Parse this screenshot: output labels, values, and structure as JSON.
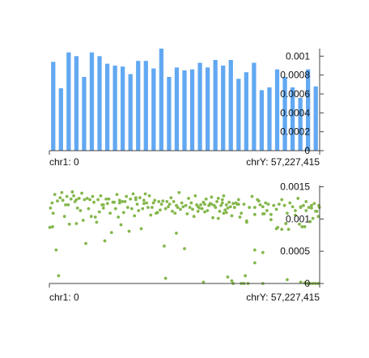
{
  "chart_data": [
    {
      "type": "bar",
      "color": "#62a8f2",
      "x_start_label": "chr1: 0",
      "x_end_label": "chrY: 57,227,415",
      "ylim": [
        0,
        0.00108
      ],
      "yticks": [
        "0",
        "0.0002",
        "0.0004",
        "0.0006",
        "0.0008",
        "0.001"
      ],
      "grid": false,
      "values": [
        0.00094,
        0.00066,
        0.00104,
        0.001,
        0.00078,
        0.00104,
        0.001,
        0.00092,
        0.0009,
        0.00089,
        0.00081,
        0.00095,
        0.00095,
        0.00087,
        0.00108,
        0.00078,
        0.00088,
        0.00085,
        0.00086,
        0.00093,
        0.00088,
        0.00096,
        0.0009,
        0.00096,
        0.00076,
        0.00083,
        0.00093,
        0.00064,
        0.00067,
        0.00086,
        0.00078,
        0.00067,
        0.00056,
        0.00086,
        0.00068
      ]
    },
    {
      "type": "scatter",
      "color": "#84b74c",
      "x_start_label": "chr1: 0",
      "x_end_label": "chrY: 57,227,415",
      "ylim": [
        0,
        0.00152
      ],
      "yticks": [
        "0",
        "0.0005",
        "0.001",
        "0.0015"
      ],
      "grid": false,
      "points": [
        [
          0.002,
          0.00087
        ],
        [
          0.004,
          0.00117
        ],
        [
          0.01,
          0.00125
        ],
        [
          0.014,
          0.00109
        ],
        [
          0.02,
          0.00138
        ],
        [
          0.025,
          0.00052
        ],
        [
          0.03,
          0.00128
        ],
        [
          0.034,
          0.00012
        ],
        [
          0.04,
          0.00133
        ],
        [
          0.046,
          0.00141
        ],
        [
          0.05,
          0.00129
        ],
        [
          0.056,
          0.00104
        ],
        [
          0.06,
          0.00122
        ],
        [
          0.065,
          0.00135
        ],
        [
          0.07,
          0.00122
        ],
        [
          0.074,
          0.00092
        ],
        [
          0.08,
          0.00131
        ],
        [
          0.085,
          0.00142
        ],
        [
          0.09,
          0.00136
        ],
        [
          0.095,
          0.00127
        ],
        [
          0.1,
          0.0013
        ],
        [
          0.104,
          0.00117
        ],
        [
          0.11,
          0.00132
        ],
        [
          0.115,
          0.00113
        ],
        [
          0.12,
          0.0014
        ],
        [
          0.125,
          0.00098
        ],
        [
          0.13,
          0.0013
        ],
        [
          0.135,
          0.00062
        ],
        [
          0.14,
          0.00132
        ],
        [
          0.145,
          0.00116
        ],
        [
          0.15,
          0.0013
        ],
        [
          0.155,
          0.00104
        ],
        [
          0.16,
          0.00135
        ],
        [
          0.165,
          0.00126
        ],
        [
          0.17,
          0.00103
        ],
        [
          0.175,
          0.00095
        ],
        [
          0.18,
          0.0013
        ],
        [
          0.185,
          0.00111
        ],
        [
          0.19,
          0.00136
        ],
        [
          0.195,
          0.00122
        ],
        [
          0.2,
          0.00117
        ],
        [
          0.205,
          0.00066
        ],
        [
          0.21,
          0.00131
        ],
        [
          0.215,
          0.00124
        ],
        [
          0.22,
          0.00131
        ],
        [
          0.225,
          0.00109
        ],
        [
          0.23,
          0.00079
        ],
        [
          0.235,
          0.00126
        ],
        [
          0.24,
          0.00126
        ],
        [
          0.245,
          0.00116
        ],
        [
          0.25,
          0.00138
        ],
        [
          0.255,
          0.00103
        ],
        [
          0.26,
          0.00125
        ],
        [
          0.265,
          0.00091
        ],
        [
          0.27,
          0.00127
        ],
        [
          0.275,
          0.0011
        ],
        [
          0.28,
          0.00127
        ],
        [
          0.285,
          0.00135
        ],
        [
          0.29,
          0.00118
        ],
        [
          0.295,
          0.00081
        ],
        [
          0.3,
          0.00131
        ],
        [
          0.305,
          0.00116
        ],
        [
          0.31,
          0.00139
        ],
        [
          0.315,
          0.00105
        ],
        [
          0.32,
          0.00133
        ],
        [
          0.325,
          0.00123
        ],
        [
          0.33,
          0.00113
        ],
        [
          0.335,
          0.00133
        ],
        [
          0.34,
          0.00085
        ],
        [
          0.345,
          0.00116
        ],
        [
          0.35,
          0.00129
        ],
        [
          0.355,
          0.00139
        ],
        [
          0.36,
          0.00125
        ],
        [
          0.365,
          0.00118
        ],
        [
          0.37,
          0.00136
        ],
        [
          0.375,
          0.00106
        ],
        [
          0.38,
          0.00118
        ],
        [
          0.385,
          0.00125
        ],
        [
          0.39,
          0.00129
        ],
        [
          0.395,
          0.00109
        ],
        [
          0.4,
          0.0011
        ],
        [
          0.405,
          0.00127
        ],
        [
          0.41,
          0.00114
        ],
        [
          0.415,
          0.00123
        ],
        [
          0.42,
          0.00128
        ],
        [
          0.425,
          0.00058
        ],
        [
          0.43,
          0.00116
        ],
        [
          0.435,
          0.00127
        ],
        [
          0.44,
          0.00119
        ],
        [
          0.445,
          0.00123
        ],
        [
          0.45,
          0.00133
        ],
        [
          0.455,
          0.00112
        ],
        [
          0.46,
          0.00127
        ],
        [
          0.465,
          0.00109
        ],
        [
          0.47,
          0.00121
        ],
        [
          0.475,
          0.00118
        ],
        [
          0.48,
          0.00141
        ],
        [
          0.485,
          0.00115
        ],
        [
          0.49,
          0.00125
        ],
        [
          0.495,
          0.00119
        ],
        [
          0.5,
          0.00054
        ],
        [
          0.505,
          0.00121
        ],
        [
          0.51,
          0.00108
        ],
        [
          0.515,
          0.00132
        ],
        [
          0.52,
          0.00118
        ],
        [
          0.525,
          0.00125
        ],
        [
          0.53,
          0.00115
        ],
        [
          0.535,
          0.00104
        ],
        [
          0.54,
          0.00136
        ],
        [
          0.545,
          0.00122
        ],
        [
          0.55,
          0.00119
        ],
        [
          0.555,
          0.00117
        ],
        [
          0.56,
          0.00122
        ],
        [
          0.565,
          0.00116
        ],
        [
          0.57,
          0.00126
        ],
        [
          0.575,
          0.00123
        ],
        [
          0.58,
          0.00131
        ],
        [
          0.585,
          0.00113
        ],
        [
          0.59,
          0.00121
        ],
        [
          0.595,
          0.00124
        ],
        [
          0.6,
          0.00134
        ],
        [
          0.605,
          0.00102
        ],
        [
          0.61,
          0.00121
        ],
        [
          0.615,
          0.00118
        ],
        [
          0.62,
          0.00127
        ],
        [
          0.625,
          0.00132
        ],
        [
          0.63,
          0.00112
        ],
        [
          0.635,
          0.00121
        ],
        [
          0.64,
          0.00125
        ],
        [
          0.645,
          0.00136
        ],
        [
          0.65,
          0.00114
        ],
        [
          0.655,
          0.00122
        ],
        [
          0.66,
          0.00117
        ],
        [
          0.665,
          0.00126
        ],
        [
          0.67,
          0.00119
        ],
        [
          0.675,
          0.00105
        ],
        [
          0.68,
          0.00124
        ],
        [
          0.685,
          0.00118
        ],
        [
          0.69,
          0.00125
        ],
        [
          0.695,
          0.00123
        ],
        [
          0.7,
          0.00123
        ],
        [
          0.71,
          0.00109
        ],
        [
          0.72,
          0.00123
        ],
        [
          0.73,
          0.00095
        ],
        [
          0.74,
          0.00118
        ],
        [
          0.75,
          0.00135
        ],
        [
          0.76,
          0.00118
        ],
        [
          0.77,
          0.0013
        ],
        [
          0.78,
          0.00122
        ],
        [
          0.79,
          0.00119
        ],
        [
          0.8,
          0.00125
        ],
        [
          0.81,
          0.00123
        ],
        [
          0.82,
          0.00107
        ],
        [
          0.83,
          0.00121
        ],
        [
          0.84,
          0.00115
        ],
        [
          0.85,
          0.00123
        ],
        [
          0.86,
          0.0013
        ],
        [
          0.87,
          0.00121
        ],
        [
          0.88,
          0.00109
        ],
        [
          0.89,
          0.00125
        ],
        [
          0.9,
          0.00119
        ],
        [
          0.91,
          0.00113
        ],
        [
          0.92,
          0.00132
        ],
        [
          0.93,
          0.00118
        ],
        [
          0.94,
          0.00121
        ],
        [
          0.95,
          0.00127
        ],
        [
          0.96,
          0.00118
        ],
        [
          0.97,
          0.00121
        ],
        [
          0.98,
          0.00124
        ],
        [
          0.99,
          0.00112
        ],
        [
          0.002,
          0.00087
        ],
        [
          0.012,
          0.00088
        ],
        [
          0.1,
          0.00093
        ],
        [
          0.2,
          0.00122
        ],
        [
          0.26,
          0.00129
        ],
        [
          0.32,
          0.0013
        ],
        [
          0.35,
          0.00124
        ],
        [
          0.47,
          0.00078
        ],
        [
          0.55,
          0.00112
        ],
        [
          0.6,
          0.00123
        ],
        [
          0.64,
          0.0013
        ],
        [
          0.7,
          0.0013
        ],
        [
          0.73,
          0.00097
        ],
        [
          0.76,
          0.00107
        ],
        [
          0.79,
          0.00108
        ],
        [
          0.82,
          0.00099
        ],
        [
          0.91,
          0.00106
        ],
        [
          0.93,
          0.00119
        ],
        [
          0.95,
          0.00113
        ],
        [
          0.97,
          0.00117
        ],
        [
          0.999,
          0.00118
        ],
        [
          0.997,
          0.00121
        ],
        [
          0.995,
          0.00104
        ],
        [
          0.985,
          0.00112
        ],
        [
          0.975,
          0.00101
        ],
        [
          0.965,
          0.00096
        ],
        [
          0.945,
          0.00088
        ],
        [
          0.935,
          0.00088
        ],
        [
          0.925,
          0.00092
        ],
        [
          0.885,
          0.00084
        ],
        [
          0.875,
          0.00093
        ],
        [
          0.86,
          0.00084
        ],
        [
          0.845,
          0.00087
        ],
        [
          0.805,
          0.00113
        ],
        [
          0.795,
          0.00108
        ],
        [
          0.705,
          0.00103
        ],
        [
          0.655,
          0.0011
        ],
        [
          0.645,
          0.00109
        ],
        [
          0.625,
          0.00101
        ],
        [
          0.575,
          0.00111
        ],
        [
          0.66,
          0.0001
        ],
        [
          0.675,
          4e-05
        ],
        [
          0.68,
          0
        ],
        [
          0.71,
          0
        ],
        [
          0.72,
          0
        ],
        [
          0.735,
          0
        ],
        [
          0.76,
          0.00032
        ],
        [
          0.775,
          0.00128
        ],
        [
          0.79,
          0.0
        ],
        [
          0.88,
          6e-05
        ],
        [
          0.93,
          2e-05
        ],
        [
          0.945,
          1e-05
        ],
        [
          0.955,
          0
        ],
        [
          0.965,
          0.0
        ],
        [
          0.975,
          0
        ],
        [
          0.985,
          0
        ],
        [
          0.995,
          0
        ],
        [
          0.725,
          0.00012
        ],
        [
          0.57,
          2e-05
        ],
        [
          0.43,
          8e-05
        ],
        [
          0.76,
          0.00052
        ],
        [
          0.79,
          0.00048
        ],
        [
          0.84,
          0.00085
        ],
        [
          0.875,
          0.00093
        ]
      ]
    }
  ]
}
